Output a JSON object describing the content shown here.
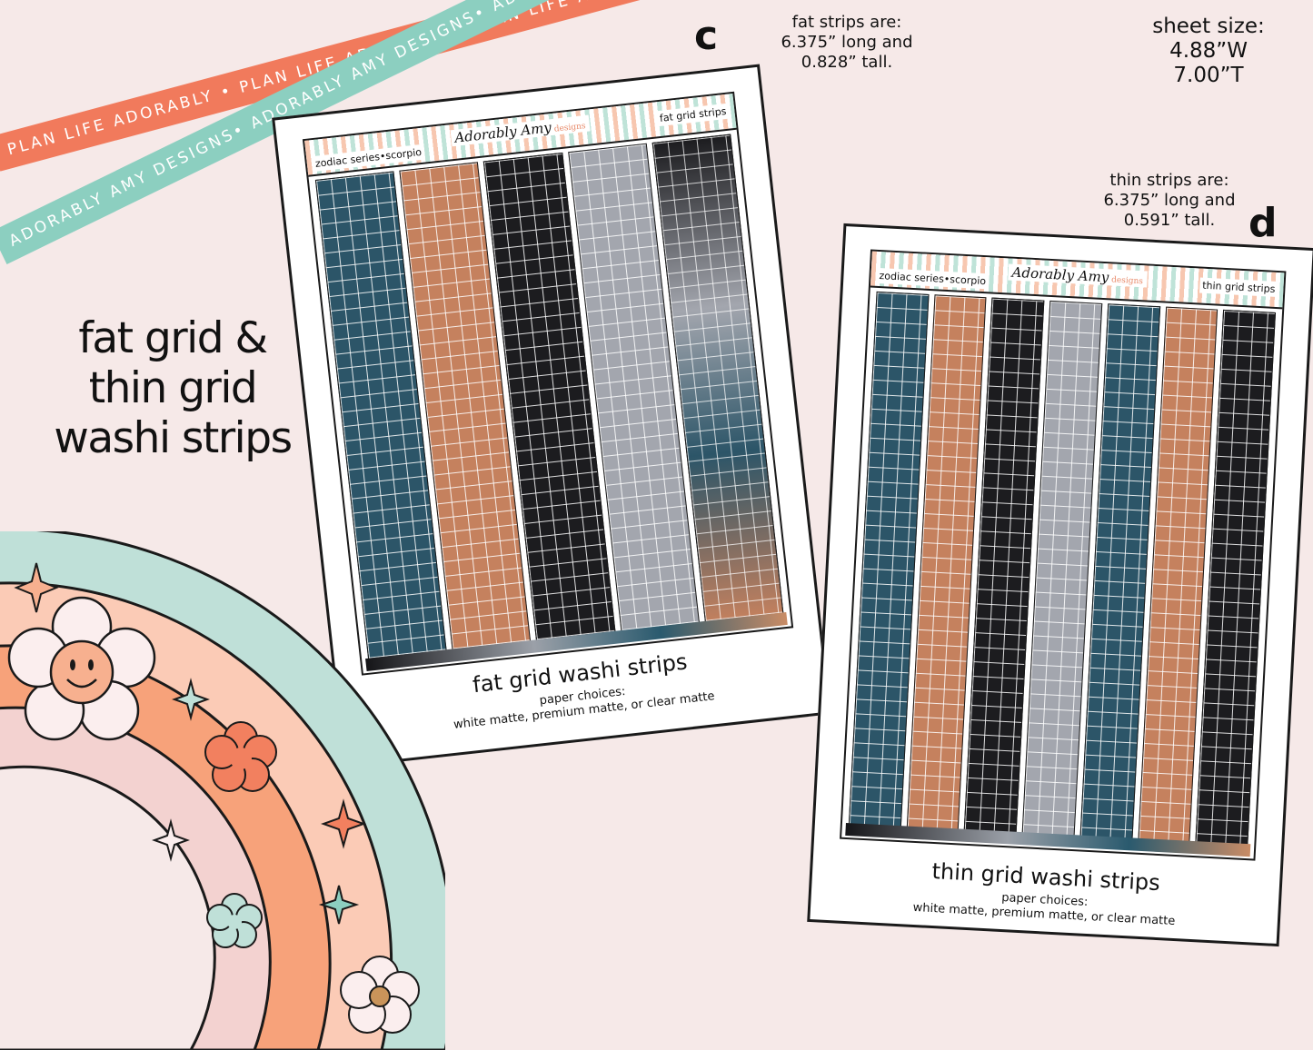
{
  "ribbons": {
    "orange_text": "PLAN LIFE ADORABLY • PLAN LIFE ADORABLY • PLAN LIFE ADORABLY",
    "mint_text": "ADORABLY AMY DESIGNS• ADORABLY AMY DESIGNS• ADORABLY AMY DESIGNS•"
  },
  "headline": [
    "fat grid &",
    "thin grid",
    "washi strips"
  ],
  "sheet_size": [
    "sheet size:",
    "4.88”W",
    "7.00”T"
  ],
  "fat_info": [
    "fat strips are:",
    "6.375” long and",
    "0.828” tall."
  ],
  "thin_info": [
    "thin strips are:",
    "6.375” long and",
    "0.591” tall."
  ],
  "sheet_c": {
    "letter": "c",
    "header_left": "zodiac series•scorpio",
    "header_right": "fat grid strips",
    "logo": "Adorably Amy",
    "logo_sub": "designs",
    "title": "fat grid washi strips",
    "paper_label": "paper choices:",
    "paper_options": "white matte, premium matte, or clear matte",
    "strips": [
      "teal",
      "copper",
      "black",
      "grey",
      "ombre"
    ]
  },
  "sheet_d": {
    "letter": "d",
    "header_left": "zodiac series•scorpio",
    "header_right": "thin grid strips",
    "logo": "Adorably Amy",
    "logo_sub": "designs",
    "title": "thin grid washi strips",
    "paper_label": "paper choices:",
    "paper_options": "white matte, premium matte, or clear matte",
    "strips": [
      "teal",
      "copper",
      "black",
      "grey",
      "teal",
      "copper",
      "black"
    ]
  },
  "colors": {
    "teal": "#2c5568",
    "copper": "#c5815e",
    "black": "#1c1c1f",
    "grey": "#a3a6ae",
    "ribbon_orange": "#f17a5c",
    "ribbon_mint": "#8ccfc0",
    "background": "#f6e9e8"
  },
  "icons": [
    "smiley-flower-icon",
    "flower-icon",
    "sparkle-star-icon"
  ]
}
